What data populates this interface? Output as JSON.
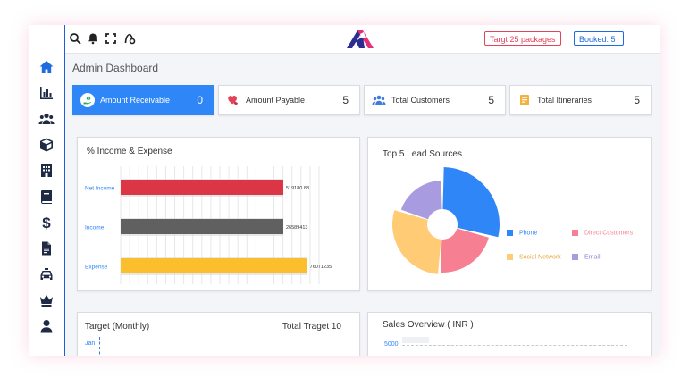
{
  "topbar": {
    "icons": [
      "menu-icon",
      "search-icon",
      "bell-icon",
      "fullscreen-icon",
      "settings-icon"
    ],
    "target_pill": "Targt 25 packages",
    "booked_pill": "Booked: 5"
  },
  "sidebar": {
    "items": [
      "home-icon",
      "bar-chart-icon",
      "users-icon",
      "cube-icon",
      "building-icon",
      "book-icon",
      "dollar-icon",
      "document-icon",
      "taxi-icon",
      "crown-icon",
      "user-icon"
    ]
  },
  "page": {
    "title": "Admin Dashboard"
  },
  "stats": [
    {
      "label": "Amount Receivable",
      "value": "0",
      "icon": "money-hand-icon"
    },
    {
      "label": "Amount Payable",
      "value": "5",
      "icon": "payable-icon"
    },
    {
      "label": "Total Customers",
      "value": "5",
      "icon": "users-icon"
    },
    {
      "label": "Total Itineraries",
      "value": "5",
      "icon": "itinerary-icon"
    }
  ],
  "income_card": {
    "title": "%  Income & Expense"
  },
  "income_chart": {
    "chart_data": {
      "type": "bar",
      "orientation": "horizontal",
      "categories": [
        "Net Income",
        "Income",
        "Expense"
      ],
      "values": [
        519180.83,
        26589413,
        76071235
      ],
      "value_labels": [
        "519180.83",
        "26589413",
        "76071235"
      ],
      "colors": [
        "#dc3545",
        "#606060",
        "#fbbf2e"
      ],
      "grid": true
    }
  },
  "lead_card": {
    "title": "Top 5 Lead Sources"
  },
  "lead_chart": {
    "chart_data": {
      "type": "pie",
      "donut": true,
      "labels": [
        "Phone",
        "Direct Customers",
        "Social Network",
        "Email"
      ],
      "values": [
        29,
        22,
        29,
        20
      ],
      "colors": [
        "#2f86f6",
        "#f77f92",
        "#ffcb75",
        "#a89be0"
      ],
      "legend": "right"
    }
  },
  "target_card": {
    "title": "Target (Monthly)",
    "total": "Total Traget 10",
    "first_month": "Jan"
  },
  "sales_card": {
    "title": "Sales Overview ( INR )",
    "y_tick": "5000"
  }
}
